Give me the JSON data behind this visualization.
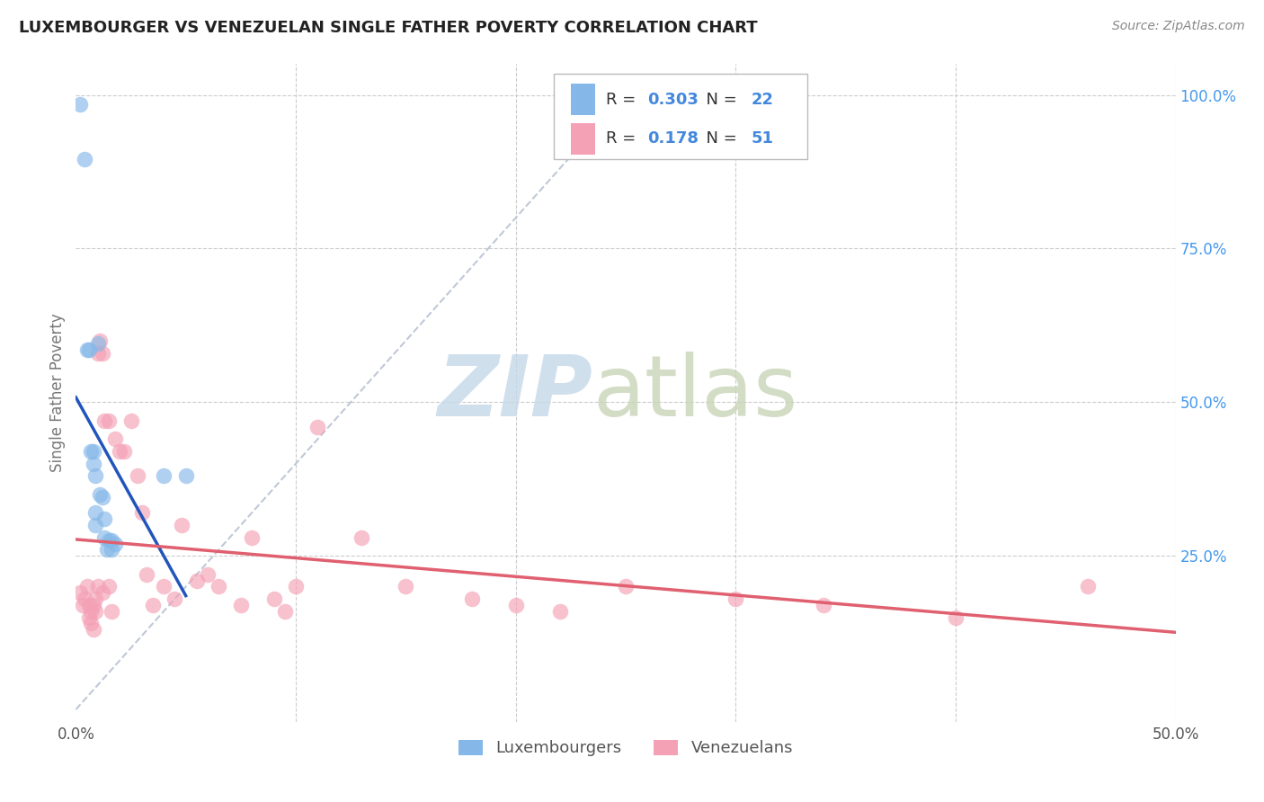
{
  "title": "LUXEMBOURGER VS VENEZUELAN SINGLE FATHER POVERTY CORRELATION CHART",
  "source": "Source: ZipAtlas.com",
  "ylabel": "Single Father Poverty",
  "xlim": [
    0.0,
    0.5
  ],
  "ylim": [
    -0.02,
    1.05
  ],
  "grid_color": "#cccccc",
  "background_color": "#ffffff",
  "lux_color": "#85b8e8",
  "ven_color": "#f4a0b5",
  "lux_line_color": "#2255bb",
  "ven_line_color": "#e06070",
  "ref_line_color": "#c0c8d8",
  "R_lux": 0.303,
  "N_lux": 22,
  "R_ven": 0.178,
  "N_ven": 51,
  "lux_scatter_x": [
    0.002,
    0.004,
    0.005,
    0.006,
    0.007,
    0.008,
    0.008,
    0.009,
    0.009,
    0.009,
    0.01,
    0.011,
    0.012,
    0.013,
    0.013,
    0.014,
    0.015,
    0.016,
    0.016,
    0.018,
    0.04,
    0.05
  ],
  "lux_scatter_y": [
    0.985,
    0.895,
    0.585,
    0.585,
    0.42,
    0.42,
    0.4,
    0.38,
    0.32,
    0.3,
    0.595,
    0.35,
    0.345,
    0.31,
    0.28,
    0.26,
    0.275,
    0.275,
    0.26,
    0.27,
    0.38,
    0.38
  ],
  "ven_scatter_x": [
    0.002,
    0.003,
    0.004,
    0.005,
    0.006,
    0.006,
    0.007,
    0.007,
    0.008,
    0.008,
    0.009,
    0.009,
    0.01,
    0.01,
    0.011,
    0.012,
    0.012,
    0.013,
    0.015,
    0.015,
    0.016,
    0.018,
    0.02,
    0.022,
    0.025,
    0.028,
    0.03,
    0.032,
    0.035,
    0.04,
    0.045,
    0.048,
    0.055,
    0.06,
    0.065,
    0.075,
    0.08,
    0.09,
    0.095,
    0.1,
    0.11,
    0.13,
    0.15,
    0.18,
    0.2,
    0.22,
    0.25,
    0.3,
    0.34,
    0.4,
    0.46
  ],
  "ven_scatter_y": [
    0.19,
    0.17,
    0.18,
    0.2,
    0.15,
    0.17,
    0.14,
    0.16,
    0.17,
    0.13,
    0.16,
    0.18,
    0.2,
    0.58,
    0.6,
    0.19,
    0.58,
    0.47,
    0.47,
    0.2,
    0.16,
    0.44,
    0.42,
    0.42,
    0.47,
    0.38,
    0.32,
    0.22,
    0.17,
    0.2,
    0.18,
    0.3,
    0.21,
    0.22,
    0.2,
    0.17,
    0.28,
    0.18,
    0.16,
    0.2,
    0.46,
    0.28,
    0.2,
    0.18,
    0.17,
    0.16,
    0.2,
    0.18,
    0.17,
    0.15,
    0.2
  ]
}
